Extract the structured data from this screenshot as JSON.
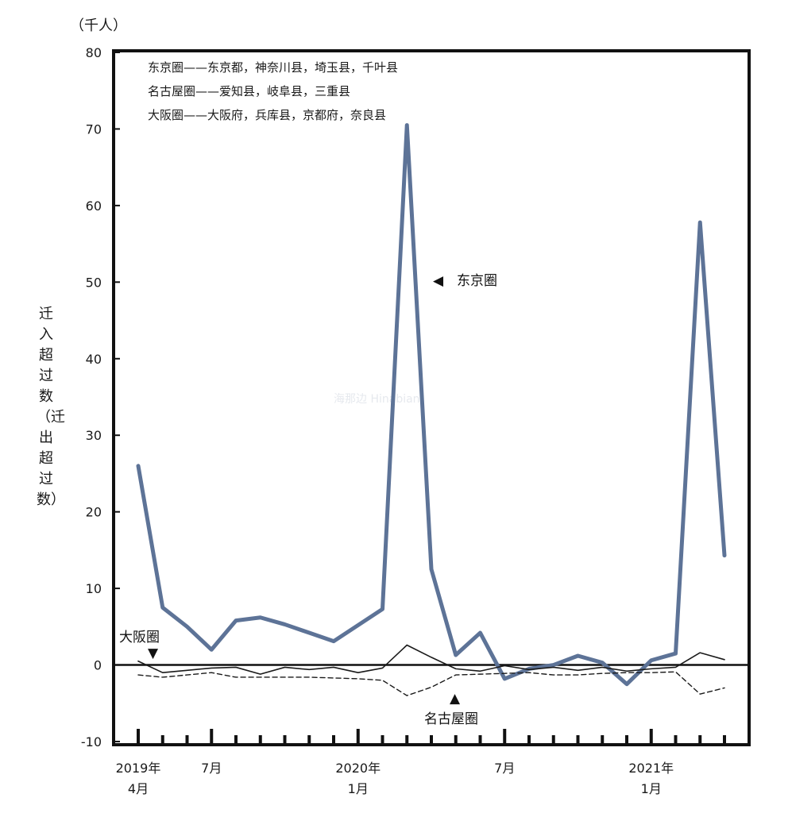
{
  "unit_label": "（千人）",
  "watermark": "海那边 Hinabian",
  "chart_data": {
    "type": "line",
    "title": "",
    "ylabel": "迁入超过数（迁出超过数）",
    "ylim": [
      -10,
      80
    ],
    "y_ticks": [
      -10,
      0,
      10,
      20,
      30,
      40,
      50,
      60,
      70,
      80
    ],
    "x": [
      "2019-04",
      "2019-05",
      "2019-06",
      "2019-07",
      "2019-08",
      "2019-09",
      "2019-10",
      "2019-11",
      "2019-12",
      "2020-01",
      "2020-02",
      "2020-03",
      "2020-04",
      "2020-05",
      "2020-06",
      "2020-07",
      "2020-08",
      "2020-09",
      "2020-10",
      "2020-11",
      "2020-12",
      "2021-01",
      "2021-02",
      "2021-03",
      "2021-04"
    ],
    "x_tick_labels": [
      {
        "month": "2019-04",
        "lines": [
          "2019年",
          "4月"
        ]
      },
      {
        "month": "2019-07",
        "lines": [
          "7月"
        ]
      },
      {
        "month": "2020-01",
        "lines": [
          "2020年",
          "1月"
        ]
      },
      {
        "month": "2020-07",
        "lines": [
          "7月"
        ]
      },
      {
        "month": "2021-01",
        "lines": [
          "2021年",
          "1月"
        ]
      }
    ],
    "series": [
      {
        "name": "东京圈",
        "color": "#5d7397",
        "values": [
          26.0,
          7.5,
          5.0,
          2.0,
          5.8,
          6.2,
          5.3,
          4.2,
          3.1,
          5.2,
          7.3,
          70.5,
          12.5,
          1.3,
          4.2,
          -1.8,
          -0.5,
          0.0,
          1.2,
          0.3,
          -2.5,
          0.6,
          1.5,
          57.8,
          14.3
        ]
      },
      {
        "name": "大阪圈",
        "color": "#1a1a1a",
        "values": [
          0.5,
          -1.0,
          -0.7,
          -0.4,
          -0.3,
          -1.2,
          -0.3,
          -0.6,
          -0.3,
          -1.0,
          -0.4,
          2.6,
          1.0,
          -0.5,
          -0.8,
          -0.1,
          -0.6,
          -0.3,
          -0.7,
          -0.3,
          -0.8,
          -0.5,
          -0.3,
          1.6,
          0.7
        ]
      },
      {
        "name": "名古屋圈",
        "color": "#1a1a1a",
        "values": [
          -1.3,
          -1.6,
          -1.3,
          -1.0,
          -1.6,
          -1.6,
          -1.6,
          -1.6,
          -1.7,
          -1.8,
          -2.0,
          -4.0,
          -2.9,
          -1.3,
          -1.2,
          -1.1,
          -1.0,
          -1.3,
          -1.3,
          -1.1,
          -1.0,
          -1.0,
          -0.9,
          -3.8,
          -3.0
        ]
      }
    ],
    "notes": [
      "东京圈——东京都，神奈川县，埼玉县，千叶县",
      "名古屋圈——爱知县，岐阜县，三重县",
      "大阪圈——大阪府，兵库县，京都府，奈良县"
    ],
    "annotations": [
      {
        "text": "东京圈",
        "arrow": "◀",
        "series": "东京圈"
      },
      {
        "text": "大阪圈",
        "arrow": "▼",
        "series": "大阪圈"
      },
      {
        "text": "名古屋圈",
        "arrow": "▲",
        "series": "名古屋圈"
      }
    ],
    "zero_line": true,
    "grid": false
  }
}
